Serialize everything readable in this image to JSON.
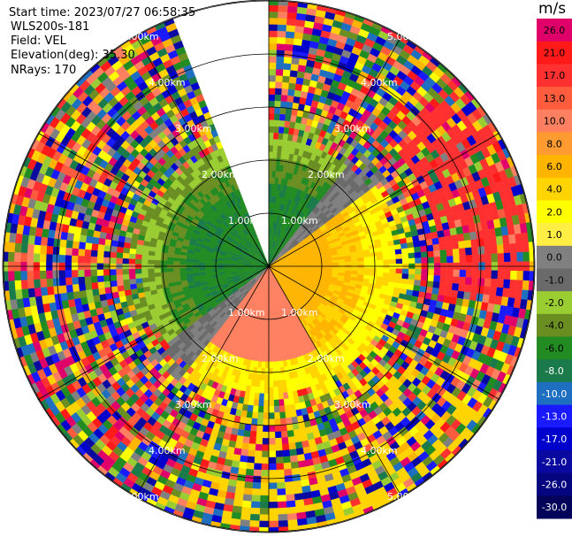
{
  "header": {
    "start_time": "Start time: 2023/07/27 06:58:35",
    "instrument": "WLS200s-181",
    "field": "Field: VEL",
    "elevation": "Elevation(deg): 35.30",
    "nrays": "NRays: 170"
  },
  "chart_data": {
    "type": "ppi-radial-velocity",
    "range_ring_labels": [
      "1.00km",
      "2.00km",
      "3.00km",
      "4.00km",
      "5.00km"
    ],
    "range_rings_km": [
      1,
      2,
      3,
      4,
      5
    ],
    "max_range_km": 5.0,
    "nrays": 170,
    "missing_sector_deg": [
      -22,
      0
    ],
    "colorbar": {
      "unit": "m/s",
      "ticks": [
        "26.0",
        "21.0",
        "17.0",
        "13.0",
        "10.0",
        "8.0",
        "6.0",
        "4.0",
        "2.0",
        "1.0",
        "0.0",
        "-1.0",
        "-2.0",
        "-4.0",
        "-6.0",
        "-8.0",
        "-10.0",
        "-13.0",
        "-17.0",
        "-21.0",
        "-26.0",
        "-30.0"
      ],
      "colors": [
        "#e0006a",
        "#ff1a1a",
        "#ff3030",
        "#ff5c3d",
        "#ff8060",
        "#ff9b30",
        "#ffb400",
        "#ffd400",
        "#ffff00",
        "#ffee44",
        "#808080",
        "#6a6a6a",
        "#9acd32",
        "#6b8e23",
        "#228b22",
        "#1a7a4a",
        "#1e6fbf",
        "#1a1aff",
        "#0000cc",
        "#0a0aa0",
        "#050580",
        "#03035a"
      ]
    },
    "quadrant_velocity_pattern": {
      "near_field_north": "-4.0 to -8.0 (green)",
      "near_field_south": "6.0 to 10.0 (orange/yellow)",
      "zero_line": "0.0 (gray) from southwest to northeast",
      "northeast_far_field": "21.0 to 17.0 (red)",
      "outer_ring": "noise (mixed colors)"
    }
  }
}
